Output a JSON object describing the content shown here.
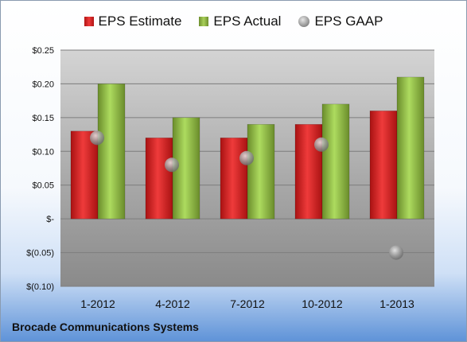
{
  "chart_data": {
    "type": "bar",
    "categories": [
      "1-2012",
      "4-2012",
      "7-2012",
      "10-2012",
      "1-2013"
    ],
    "series": [
      {
        "name": "EPS Estimate",
        "kind": "bar",
        "color": "#d62a2a",
        "values": [
          0.13,
          0.12,
          0.12,
          0.14,
          0.16
        ]
      },
      {
        "name": "EPS Actual",
        "kind": "bar",
        "color": "#8db443",
        "values": [
          0.2,
          0.15,
          0.14,
          0.17,
          0.21
        ]
      },
      {
        "name": "EPS GAAP",
        "kind": "scatter",
        "color": "#9a9a9a",
        "values": [
          0.12,
          0.08,
          0.09,
          0.11,
          -0.05
        ]
      }
    ],
    "ylim": [
      -0.1,
      0.25
    ],
    "yticks": [
      0.25,
      0.2,
      0.15,
      0.1,
      0.05,
      0,
      -0.05,
      -0.1
    ],
    "ytick_labels": [
      "$0.25",
      "$0.20",
      "$0.15",
      "$0.10",
      "$0.05",
      "$-",
      "$(0.05)",
      "$(0.10)"
    ],
    "grid": true,
    "legend": "top-center",
    "title": "",
    "xlabel": "",
    "ylabel": ""
  },
  "footer": {
    "company": "Brocade Communications Systems"
  }
}
